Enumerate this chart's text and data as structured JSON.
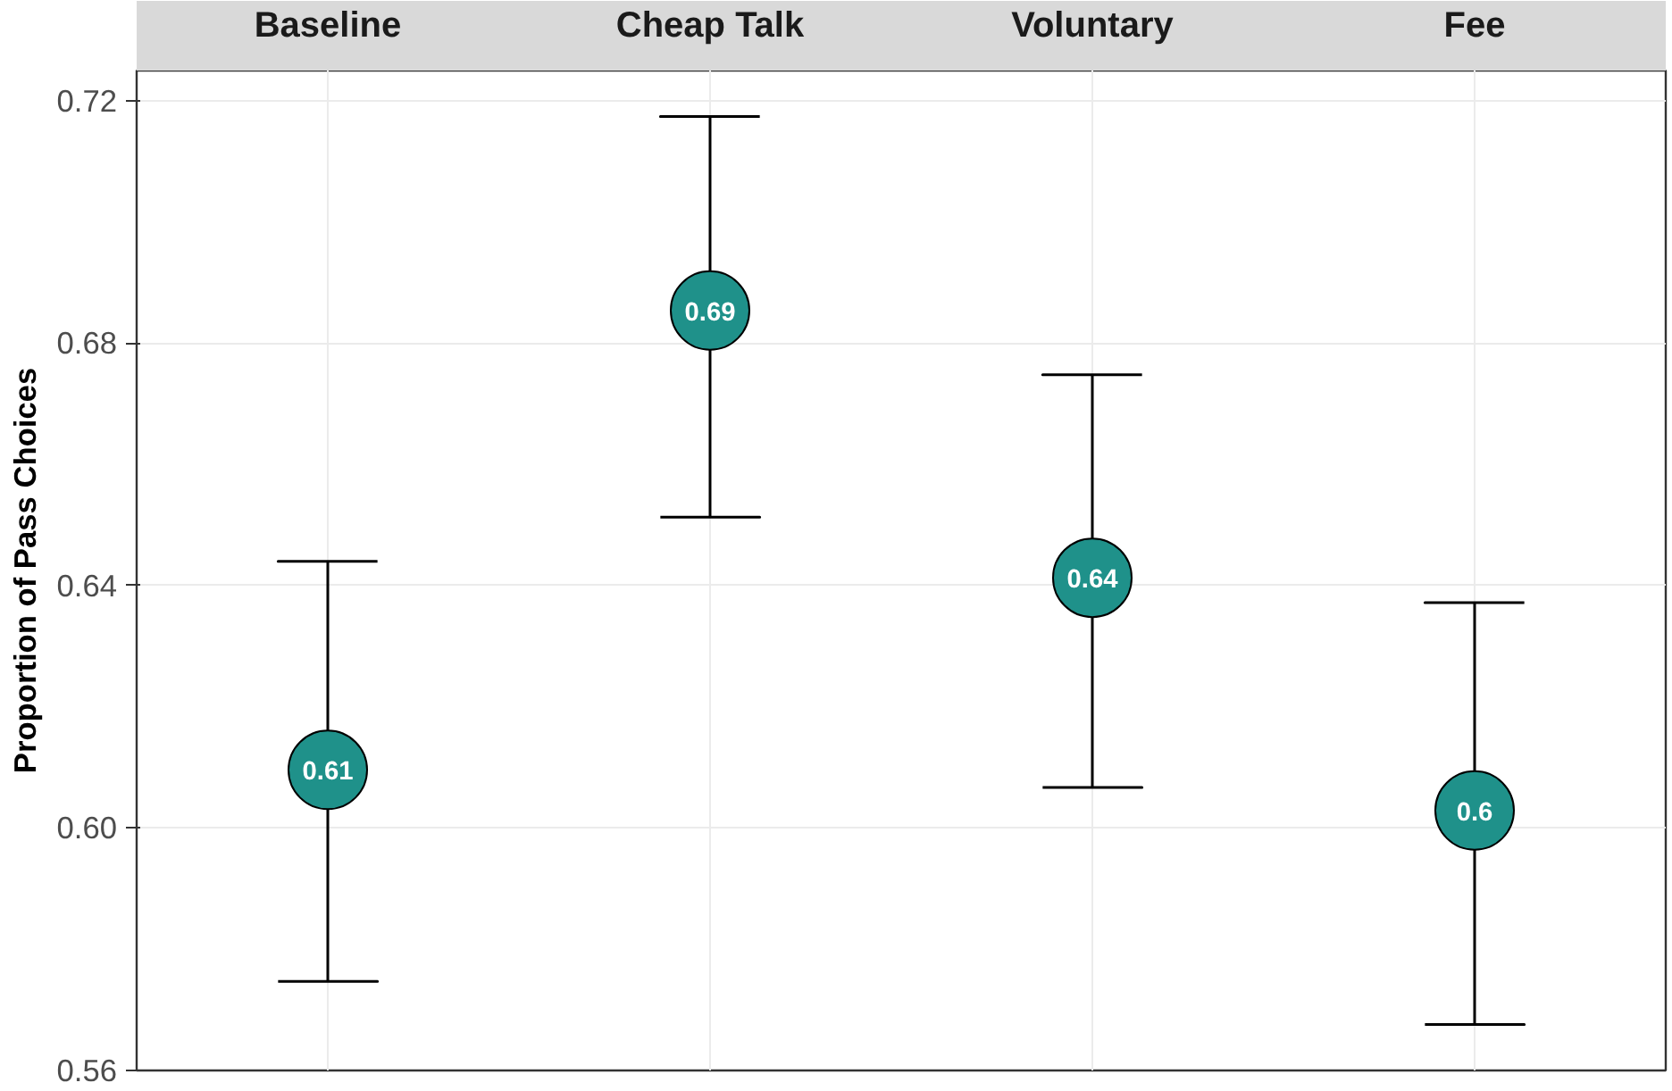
{
  "chart_data": {
    "type": "scatter",
    "ylabel": "Proportion of Pass Choices",
    "categories": [
      "Baseline",
      "Cheap Talk",
      "Voluntary",
      "Fee"
    ],
    "values": [
      0.6096,
      0.6854,
      0.6413,
      0.6029
    ],
    "errors": [
      [
        0.5747,
        0.644
      ],
      [
        0.6513,
        0.7174
      ],
      [
        0.6067,
        0.6748
      ],
      [
        0.5676,
        0.6372
      ]
    ],
    "value_labels": [
      "0.61",
      "0.69",
      "0.64",
      "0.6"
    ],
    "color": "#1f918a",
    "ylim": [
      0.56,
      0.725
    ],
    "yticks": [
      0.56,
      {
        "value": 0.6,
        "label": "0.60"
      },
      0.64,
      0.68,
      0.72
    ],
    "grid": true,
    "marker": "circle"
  }
}
